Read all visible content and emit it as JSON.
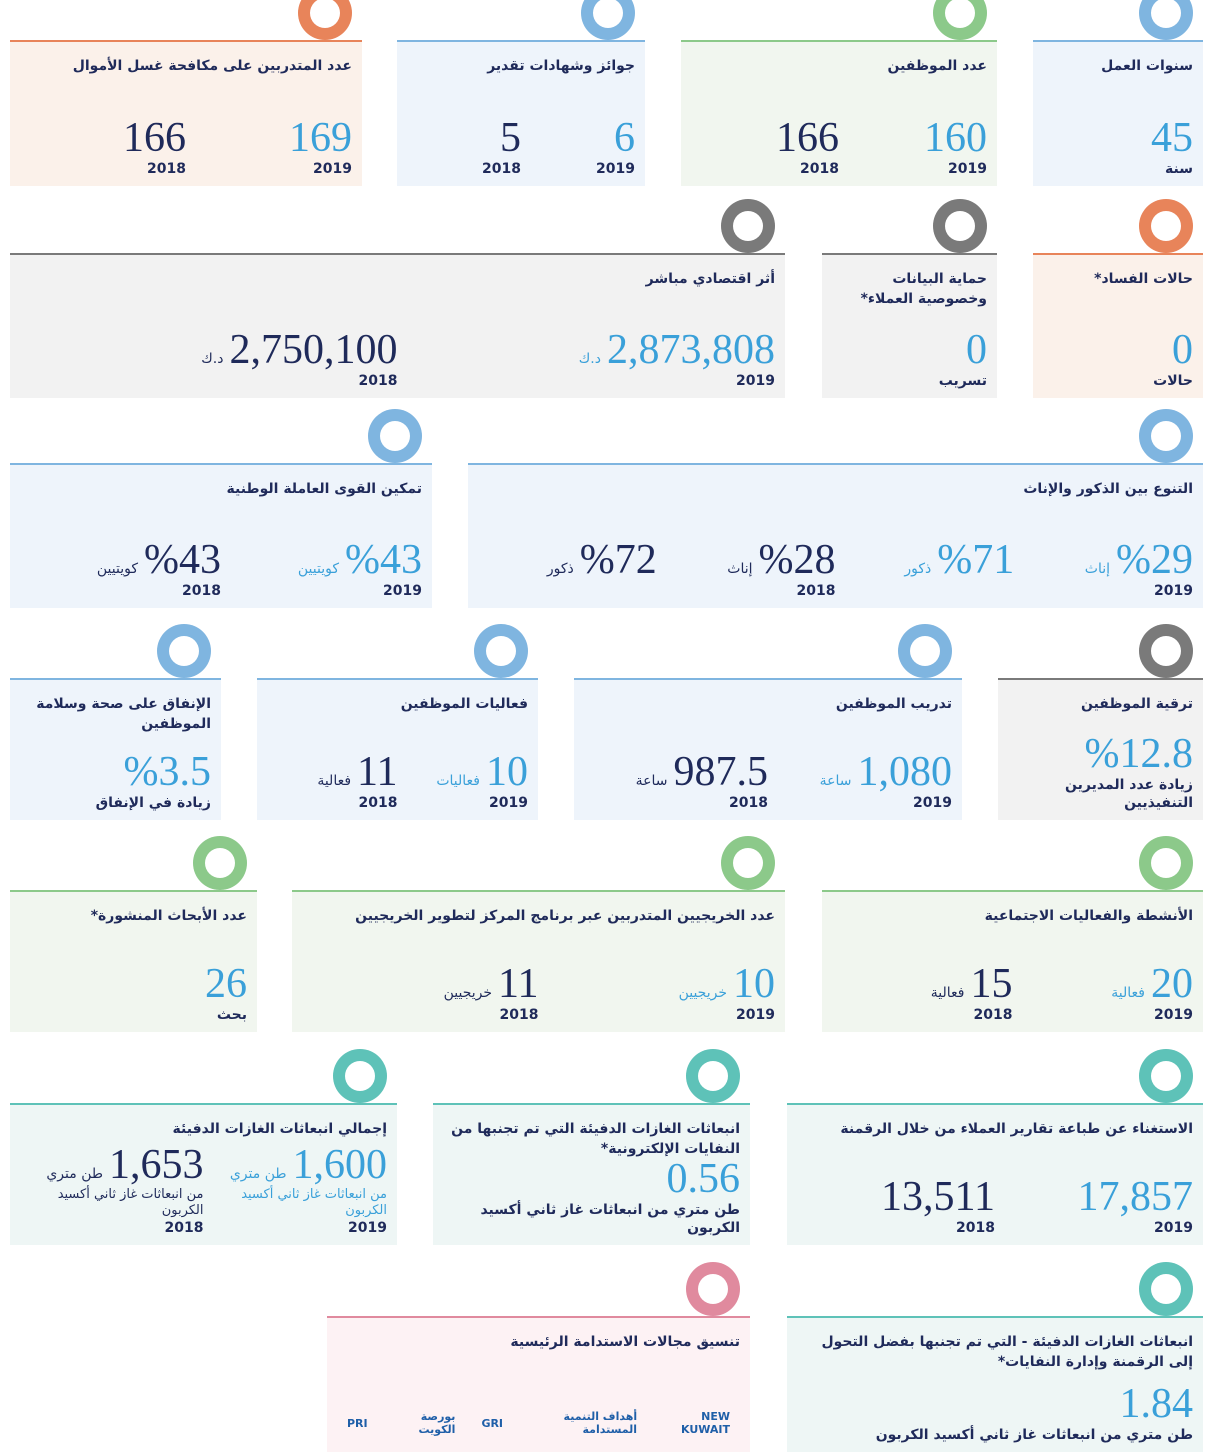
{
  "cards": [
    {
      "title": "سنوات العمل",
      "color": "#7fb5e0",
      "bg": "#eef4fb",
      "items": [
        {
          "value": "45",
          "caption": "سنة"
        }
      ]
    },
    {
      "title": "عدد الموظفين",
      "color": "#8cc98a",
      "bg": "#f1f6ef",
      "items": [
        {
          "value": "160",
          "year": "2019"
        },
        {
          "value": "166",
          "year": "2018"
        }
      ]
    },
    {
      "title": "جوائز وشهادات تقدير",
      "color": "#7fb5e0",
      "bg": "#eef4fb",
      "items": [
        {
          "value": "6",
          "year": "2019"
        },
        {
          "value": "5",
          "year": "2018"
        }
      ]
    },
    {
      "title": "عدد المتدربين على مكافحة غسل الأموال",
      "color": "#e8845a",
      "bg": "#fbf1ea",
      "items": [
        {
          "value": "169",
          "year": "2019"
        },
        {
          "value": "166",
          "year": "2018"
        }
      ]
    },
    {
      "title": "حالات الفساد*",
      "color": "#e8845a",
      "bg": "#fbf1ea",
      "items": [
        {
          "value": "0",
          "caption": "حالات"
        }
      ]
    },
    {
      "title": "حماية البيانات وخصوصية العملاء*",
      "color": "#7a7a7a",
      "bg": "#f2f2f2",
      "items": [
        {
          "value": "0",
          "caption": "تسريب"
        }
      ]
    },
    {
      "title": "أثر اقتصادي مباشر",
      "color": "#7a7a7a",
      "bg": "#f2f2f2",
      "items": [
        {
          "value": "2,873,808",
          "unit": "د.ك",
          "year": "2019"
        },
        {
          "value": "2,750,100",
          "unit": "د.ك",
          "year": "2018"
        }
      ]
    },
    {
      "title": "التنوع بين الذكور والإناث",
      "color": "#7fb5e0",
      "bg": "#eef4fb",
      "items": [
        {
          "value": "%29",
          "unit": "إناث",
          "year": "2019"
        },
        {
          "value": "%71",
          "unit": "ذكور"
        },
        {
          "value": "%28",
          "unit": "إناث",
          "year": "2018"
        },
        {
          "value": "%72",
          "unit": "ذكور"
        }
      ]
    },
    {
      "title": "تمكين القوى العاملة الوطنية",
      "color": "#7fb5e0",
      "bg": "#eef4fb",
      "items": [
        {
          "value": "%43",
          "unit": "كويتيين",
          "year": "2019"
        },
        {
          "value": "%43",
          "unit": "كويتيين",
          "year": "2018"
        }
      ]
    },
    {
      "title": "ترقية الموظفين",
      "color": "#7a7a7a",
      "bg": "#f2f2f2",
      "items": [
        {
          "value": "%12.8",
          "caption": "زيادة عدد المديرين التنفيذيين"
        }
      ]
    },
    {
      "title": "تدريب الموظفين",
      "color": "#7fb5e0",
      "bg": "#eef4fb",
      "items": [
        {
          "value": "1,080",
          "unit": "ساعة",
          "year": "2019"
        },
        {
          "value": "987.5",
          "unit": "ساعة",
          "year": "2018"
        }
      ]
    },
    {
      "title": "فعاليات الموظفين",
      "color": "#7fb5e0",
      "bg": "#eef4fb",
      "items": [
        {
          "value": "10",
          "unit": "فعاليات",
          "year": "2019"
        },
        {
          "value": "11",
          "unit": "فعالية",
          "year": "2018"
        }
      ]
    },
    {
      "title": "الإنفاق على صحة وسلامة الموظفين",
      "color": "#7fb5e0",
      "bg": "#eef4fb",
      "items": [
        {
          "value": "%3.5",
          "caption": "زيادة في الإنفاق"
        }
      ]
    },
    {
      "title": "الأنشطة والفعاليات الاجتماعية",
      "color": "#8cc98a",
      "bg": "#f1f6ef",
      "items": [
        {
          "value": "20",
          "unit": "فعالية",
          "year": "2019"
        },
        {
          "value": "15",
          "unit": "فعالية",
          "year": "2018"
        }
      ]
    },
    {
      "title": "عدد الخريجيين المتدربين عبر برنامج المركز لتطوير الخريجيين",
      "color": "#8cc98a",
      "bg": "#f1f6ef",
      "items": [
        {
          "value": "10",
          "unit": "خريجيين",
          "year": "2019"
        },
        {
          "value": "11",
          "unit": "خريجيين",
          "year": "2018"
        }
      ]
    },
    {
      "title": "عدد الأبحاث المنشورة*",
      "color": "#8cc98a",
      "bg": "#f1f6ef",
      "items": [
        {
          "value": "26",
          "caption": "بحث"
        }
      ]
    },
    {
      "title": "الاستغناء عن طباعة تقارير العملاء من خلال الرقمنة",
      "color": "#5ec2b8",
      "bg": "#eef6f5",
      "items": [
        {
          "value": "17,857",
          "year": "2019"
        },
        {
          "value": "13,511",
          "year": "2018"
        }
      ]
    },
    {
      "title": "انبعاثات الغازات الدفيئة التي تم تجنبها من النفايات الإلكترونية*",
      "color": "#5ec2b8",
      "bg": "#eef6f5",
      "items": [
        {
          "value": "0.56",
          "caption": "طن متري من انبعاثات غاز ثاني أكسيد الكربون"
        }
      ]
    },
    {
      "title": "إجمالي انبعاثات الغازات الدفيئة",
      "color": "#5ec2b8",
      "bg": "#eef6f5",
      "items": [
        {
          "value": "1,600",
          "unit": "طن متري",
          "note": "من انبعاثات غاز ثاني أكسيد الكربون",
          "year": "2019"
        },
        {
          "value": "1,653",
          "unit": "طن متري",
          "note": "من انبعاثات غاز ثاني أكسيد الكربون",
          "year": "2018"
        }
      ]
    },
    {
      "title": "تنسيق مجالات الاستدامة الرئيسية",
      "color": "#e08a9e",
      "bg": "#fdf2f4",
      "items": [],
      "logos": [
        "NEW KUWAIT",
        "أهداف التنمية المستدامة",
        "GRI",
        "بورصة الكويت",
        "PRI"
      ]
    },
    {
      "title": "انبعاثات الغازات الدفيئة - التي تم تجنبها بفضل التحول إلى الرقمنة وإدارة النفايات*",
      "color": "#5ec2b8",
      "bg": "#eef6f5",
      "items": [
        {
          "value": "1.84",
          "caption": "طن متري من انبعاثات غاز ثاني أكسيد الكربون"
        }
      ]
    }
  ]
}
